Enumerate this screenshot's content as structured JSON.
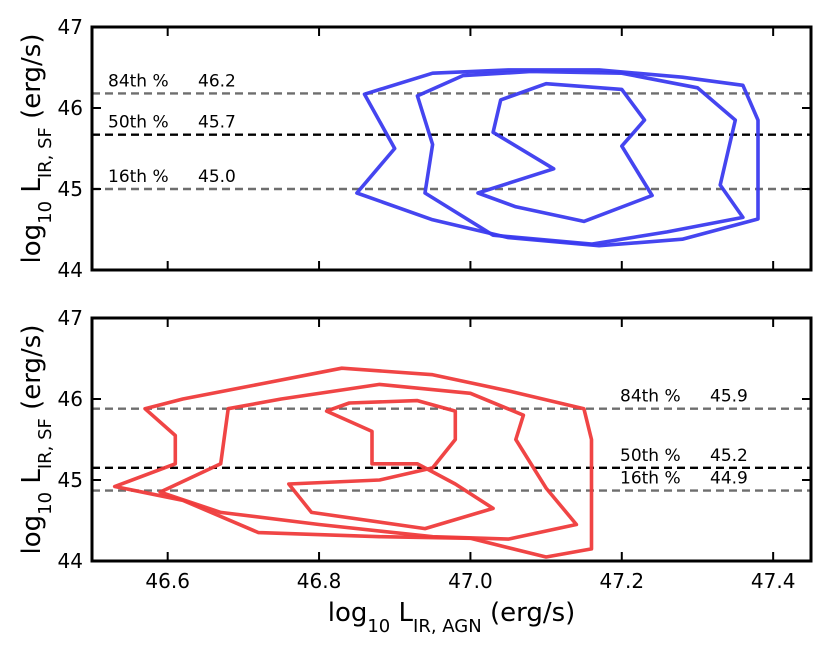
{
  "chart_data": [
    {
      "type": "contour",
      "panel": "top",
      "color": "#3b3bef",
      "xlim": [
        46.5,
        47.45
      ],
      "ylim": [
        44,
        47
      ],
      "xticks": [
        "46.6",
        "46.8",
        "47.0",
        "47.2",
        "47.4"
      ],
      "yticks": [
        "44",
        "45",
        "46",
        "47"
      ],
      "show_x_tick_labels": false,
      "ylabel": {
        "main": "log",
        "sub10": "10",
        "L": " L",
        "sub": "IR, SF",
        "unit": " (erg/s)"
      },
      "reference_lines": [
        {
          "name": "84th %",
          "value": 46.18,
          "value_text": "46.2",
          "color": "#6e6e6e",
          "label_side": "left"
        },
        {
          "name": "50th %",
          "value": 45.67,
          "value_text": "45.7",
          "color": "#000000",
          "label_side": "left"
        },
        {
          "name": "16th %",
          "value": 45.0,
          "value_text": "45.0",
          "color": "#6e6e6e",
          "label_side": "left"
        }
      ],
      "contours": [
        [
          [
            46.85,
            44.95
          ],
          [
            46.9,
            45.5
          ],
          [
            46.86,
            46.17
          ],
          [
            46.95,
            46.43
          ],
          [
            47.05,
            46.47
          ],
          [
            47.17,
            46.47
          ],
          [
            47.28,
            46.38
          ],
          [
            47.36,
            46.28
          ],
          [
            47.38,
            45.85
          ],
          [
            47.38,
            44.63
          ],
          [
            47.28,
            44.38
          ],
          [
            47.17,
            44.3
          ],
          [
            47.05,
            44.4
          ],
          [
            46.95,
            44.62
          ],
          [
            46.85,
            44.95
          ]
        ],
        [
          [
            46.94,
            44.95
          ],
          [
            46.95,
            45.55
          ],
          [
            46.93,
            46.15
          ],
          [
            46.99,
            46.4
          ],
          [
            47.08,
            46.45
          ],
          [
            47.2,
            46.43
          ],
          [
            47.3,
            46.25
          ],
          [
            47.35,
            45.85
          ],
          [
            47.33,
            45.05
          ],
          [
            47.36,
            44.65
          ],
          [
            47.26,
            44.47
          ],
          [
            47.16,
            44.32
          ],
          [
            47.03,
            44.43
          ],
          [
            46.94,
            44.95
          ]
        ],
        [
          [
            47.01,
            44.95
          ],
          [
            47.11,
            45.25
          ],
          [
            47.03,
            45.7
          ],
          [
            47.04,
            46.1
          ],
          [
            47.1,
            46.3
          ],
          [
            47.2,
            46.23
          ],
          [
            47.23,
            45.85
          ],
          [
            47.2,
            45.53
          ],
          [
            47.24,
            44.92
          ],
          [
            47.15,
            44.6
          ],
          [
            47.06,
            44.78
          ],
          [
            47.01,
            44.95
          ]
        ]
      ]
    },
    {
      "type": "contour",
      "panel": "bottom",
      "color": "#ef3b3b",
      "xlim": [
        46.5,
        47.45
      ],
      "ylim": [
        44,
        47
      ],
      "xticks": [
        "46.6",
        "46.8",
        "47.0",
        "47.2",
        "47.4"
      ],
      "yticks": [
        "44",
        "45",
        "46",
        "47"
      ],
      "show_x_tick_labels": true,
      "xlabel": {
        "main": "log",
        "sub10": "10",
        "L": " L",
        "sub": "IR, AGN",
        "unit": " (erg/s)"
      },
      "ylabel": {
        "main": "log",
        "sub10": "10",
        "L": " L",
        "sub": "IR, SF",
        "unit": " (erg/s)"
      },
      "reference_lines": [
        {
          "name": "84th %",
          "value": 45.88,
          "value_text": "45.9",
          "color": "#6e6e6e",
          "label_side": "right"
        },
        {
          "name": "50th %",
          "value": 45.15,
          "value_text": "45.2",
          "color": "#000000",
          "label_side": "right"
        },
        {
          "name": "16th %",
          "value": 44.87,
          "value_text": "44.9",
          "color": "#6e6e6e",
          "label_side": "right"
        }
      ],
      "contours": [
        [
          [
            46.53,
            44.92
          ],
          [
            46.62,
            44.75
          ],
          [
            46.72,
            44.35
          ],
          [
            46.88,
            44.3
          ],
          [
            47.0,
            44.28
          ],
          [
            47.1,
            44.05
          ],
          [
            47.16,
            44.15
          ],
          [
            47.16,
            44.5
          ],
          [
            47.16,
            45.5
          ],
          [
            47.15,
            45.88
          ],
          [
            47.05,
            46.1
          ],
          [
            46.95,
            46.3
          ],
          [
            46.83,
            46.38
          ],
          [
            46.72,
            46.18
          ],
          [
            46.62,
            46.0
          ],
          [
            46.57,
            45.88
          ],
          [
            46.61,
            45.55
          ],
          [
            46.61,
            45.2
          ],
          [
            46.53,
            44.92
          ]
        ],
        [
          [
            46.59,
            44.85
          ],
          [
            46.67,
            44.6
          ],
          [
            46.8,
            44.45
          ],
          [
            46.95,
            44.3
          ],
          [
            47.05,
            44.27
          ],
          [
            47.14,
            44.45
          ],
          [
            47.1,
            44.9
          ],
          [
            47.06,
            45.5
          ],
          [
            47.07,
            45.8
          ],
          [
            47.0,
            46.07
          ],
          [
            46.88,
            46.18
          ],
          [
            46.75,
            46.0
          ],
          [
            46.68,
            45.88
          ],
          [
            46.67,
            45.2
          ],
          [
            46.59,
            44.85
          ]
        ],
        [
          [
            46.76,
            44.95
          ],
          [
            46.79,
            44.6
          ],
          [
            46.94,
            44.4
          ],
          [
            47.03,
            44.65
          ],
          [
            46.98,
            44.95
          ],
          [
            46.95,
            45.1
          ],
          [
            46.93,
            45.2
          ],
          [
            46.87,
            45.2
          ],
          [
            46.87,
            45.6
          ],
          [
            46.81,
            45.85
          ],
          [
            46.84,
            45.95
          ],
          [
            46.93,
            45.98
          ],
          [
            46.98,
            45.85
          ],
          [
            46.98,
            45.5
          ],
          [
            46.95,
            45.15
          ],
          [
            46.88,
            45.0
          ],
          [
            46.76,
            44.95
          ]
        ]
      ]
    }
  ]
}
